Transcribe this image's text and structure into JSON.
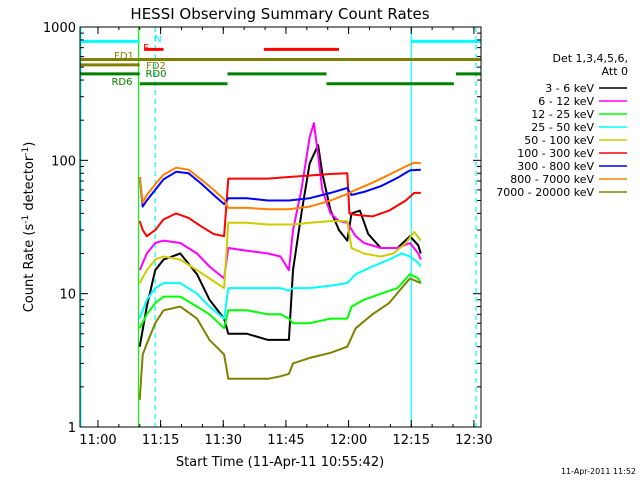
{
  "chart_data": {
    "type": "line",
    "title": "HESSI Observing Summary Count Rates",
    "xlabel": "Start Time (11-Apr-11 10:55:42)",
    "ylabel_main": "Count Rate (s",
    "ylabel_sup1": "-1",
    "ylabel_mid": " detector",
    "ylabel_sup2": "-1",
    "ylabel_end": ")",
    "x_unit": "minutes after 10:55:42",
    "xlim": [
      0,
      96
    ],
    "ylim": [
      1,
      1000
    ],
    "yscale": "log",
    "x_ticks": [
      {
        "label": "11:00",
        "value": 4.3
      },
      {
        "label": "11:15",
        "value": 19.3
      },
      {
        "label": "11:30",
        "value": 34.3
      },
      {
        "label": "11:45",
        "value": 49.3
      },
      {
        "label": "12:00",
        "value": 64.3
      },
      {
        "label": "12:15",
        "value": 79.3
      },
      {
        "label": "12:30",
        "value": 94.3
      }
    ],
    "y_ticks": [
      {
        "label": "1",
        "value": 1
      },
      {
        "label": "10",
        "value": 10
      },
      {
        "label": "100",
        "value": 100
      },
      {
        "label": "1000",
        "value": 1000
      }
    ],
    "legend_header": [
      "Det 1,3,4,5,6,",
      "Att 0"
    ],
    "legend_position": "right",
    "series": [
      {
        "name": "3 - 6 keV",
        "color": "#000000",
        "x": [
          14.3,
          16,
          18,
          20,
          24,
          28,
          31,
          34.5,
          35.5,
          40,
          45,
          48,
          50,
          51,
          53,
          55,
          57,
          58,
          60,
          62,
          64,
          65,
          67,
          69,
          72,
          76,
          79,
          81,
          81.6
        ],
        "y": [
          4,
          8,
          15,
          18,
          20,
          14,
          9,
          6.5,
          5,
          5,
          4.5,
          4.5,
          4.5,
          15,
          40,
          95,
          130,
          80,
          42,
          30,
          25,
          40,
          42,
          28,
          22,
          22,
          27,
          23,
          20
        ]
      },
      {
        "name": "6 - 12 keV",
        "color": "#ff00ff",
        "x": [
          14.3,
          16,
          18,
          20,
          24,
          28,
          31,
          34.5,
          35.5,
          40,
          45,
          48,
          50,
          51,
          53,
          55,
          56,
          57,
          58,
          60,
          62,
          64,
          66,
          68,
          72,
          76,
          79,
          81,
          81.6
        ],
        "y": [
          15,
          20,
          24,
          25,
          24,
          20,
          16,
          13,
          22,
          21,
          20,
          19,
          15,
          30,
          60,
          150,
          190,
          110,
          60,
          40,
          35,
          34,
          27,
          24,
          22,
          22,
          24,
          20,
          18
        ]
      },
      {
        "name": "12 - 25 keV",
        "color": "#00ff00",
        "x": [
          14.3,
          16,
          18,
          20,
          24,
          28,
          31,
          34.5,
          35.5,
          40,
          45,
          48,
          50,
          51,
          55,
          60,
          64,
          65,
          68,
          72,
          76,
          79,
          81,
          81.6
        ],
        "y": [
          5.5,
          7,
          8.5,
          9.5,
          9.5,
          8,
          7,
          5.5,
          7.5,
          7.5,
          7,
          7,
          6.5,
          6,
          6,
          6.5,
          6.5,
          8,
          9,
          10,
          11,
          14,
          13,
          12
        ]
      },
      {
        "name": "25 - 50 keV",
        "color": "#00ffff",
        "x": [
          14.3,
          16,
          18,
          20,
          24,
          28,
          31,
          34.5,
          35.5,
          40,
          45,
          48,
          50,
          51,
          55,
          60,
          64,
          66,
          70,
          74,
          77,
          79,
          81,
          81.6
        ],
        "y": [
          6.5,
          9,
          11,
          12,
          12,
          10,
          8,
          6.5,
          11,
          11,
          11,
          11,
          10.5,
          11,
          11,
          11.5,
          12,
          14,
          16,
          18,
          20,
          19,
          17,
          16
        ]
      },
      {
        "name": "50 - 100 keV",
        "color": "#cccc00",
        "x": [
          14.3,
          16,
          18,
          20,
          24,
          28,
          31,
          34.5,
          35.5,
          40,
          45,
          48,
          50,
          51,
          55,
          60,
          64,
          65,
          68,
          72,
          75,
          78,
          80,
          81.6
        ],
        "y": [
          12,
          15,
          18,
          19,
          18,
          15,
          13,
          11,
          34,
          34,
          33,
          33,
          33,
          33,
          34,
          35,
          35,
          22,
          20,
          19,
          20,
          24,
          29,
          25
        ]
      },
      {
        "name": "100 - 300 keV",
        "color": "#ff0000",
        "x": [
          14.3,
          15,
          16,
          18,
          20,
          23,
          26,
          29,
          32,
          34.5,
          35.5,
          40,
          45,
          50,
          55,
          60,
          64,
          64.5,
          66,
          70,
          74,
          78,
          80,
          81.6
        ],
        "y": [
          35,
          30,
          27,
          30,
          36,
          40,
          37,
          32,
          28,
          27,
          73,
          73,
          73,
          75,
          77,
          79,
          80,
          40,
          39,
          38,
          42,
          50,
          57,
          57
        ]
      },
      {
        "name": "300 - 800 keV",
        "color": "#0000ff",
        "x": [
          14.3,
          15,
          16,
          18,
          20,
          23,
          26,
          29,
          32,
          34.5,
          35.5,
          40,
          45,
          50,
          55,
          60,
          64,
          65,
          68,
          72,
          76,
          79,
          81.6
        ],
        "y": [
          75,
          45,
          50,
          60,
          72,
          82,
          80,
          67,
          55,
          47,
          52,
          52,
          50,
          50,
          52,
          57,
          62,
          55,
          58,
          64,
          74,
          84,
          85
        ]
      },
      {
        "name": "800 - 7000 keV",
        "color": "#ff8000",
        "x": [
          14.3,
          15,
          16,
          18,
          20,
          23,
          26,
          29,
          32,
          34.5,
          35.5,
          40,
          45,
          50,
          55,
          60,
          64,
          66,
          70,
          74,
          78,
          80,
          81.6
        ],
        "y": [
          75,
          48,
          55,
          66,
          78,
          88,
          85,
          72,
          60,
          51,
          44,
          44,
          43,
          43,
          45,
          50,
          56,
          60,
          68,
          78,
          90,
          96,
          95
        ]
      },
      {
        "name": "7000 - 20000 keV",
        "color": "#808000",
        "x": [
          14.3,
          15,
          16,
          18,
          20,
          24,
          28,
          31,
          34.5,
          35.5,
          40,
          45,
          48,
          50,
          51,
          55,
          60,
          64,
          66,
          70,
          74,
          77,
          79,
          81.6
        ],
        "y": [
          1.6,
          3.5,
          4.2,
          6,
          7.5,
          8,
          6.5,
          4.5,
          3.5,
          2.3,
          2.3,
          2.3,
          2.4,
          2.5,
          3,
          3.3,
          3.6,
          4,
          5.5,
          7,
          8.5,
          11,
          13,
          12
        ]
      }
    ],
    "state_bars": [
      {
        "label": "N",
        "color": "#00ffff",
        "y": 780,
        "segments": [
          [
            0,
            14.3
          ],
          [
            79.3,
            96
          ]
        ]
      },
      {
        "label": "F",
        "color": "#ff0000",
        "y": 680,
        "segments": [
          [
            15.5,
            20
          ],
          [
            44,
            62
          ]
        ]
      },
      {
        "label": "FD2",
        "color": "#808000",
        "y": 570,
        "segments": [
          [
            0,
            96
          ]
        ]
      },
      {
        "label": "FD1",
        "color": "#808000",
        "y": 520,
        "segments": [
          [
            0,
            14.3
          ]
        ]
      },
      {
        "label": "RD0",
        "color": "#008000",
        "y": 445,
        "segments": [
          [
            0,
            14.3
          ],
          [
            35.3,
            59
          ],
          [
            90,
            96
          ]
        ]
      },
      {
        "label": "RD6",
        "color": "#008000",
        "y": 375,
        "segments": [
          [
            14.3,
            35.3
          ],
          [
            59,
            89.5
          ]
        ]
      }
    ],
    "vlines": [
      {
        "x": 0.2,
        "color": "#00ffff",
        "style": "solid"
      },
      {
        "x": 14.0,
        "color": "#00ff00",
        "style": "solid"
      },
      {
        "x": 18.0,
        "color": "#00ffff",
        "style": "dashed"
      },
      {
        "x": 79.3,
        "color": "#00ffff",
        "style": "solid"
      },
      {
        "x": 94.8,
        "color": "#00ffff",
        "style": "dashed"
      }
    ],
    "timestamp": "11-Apr-2011 11:52"
  }
}
